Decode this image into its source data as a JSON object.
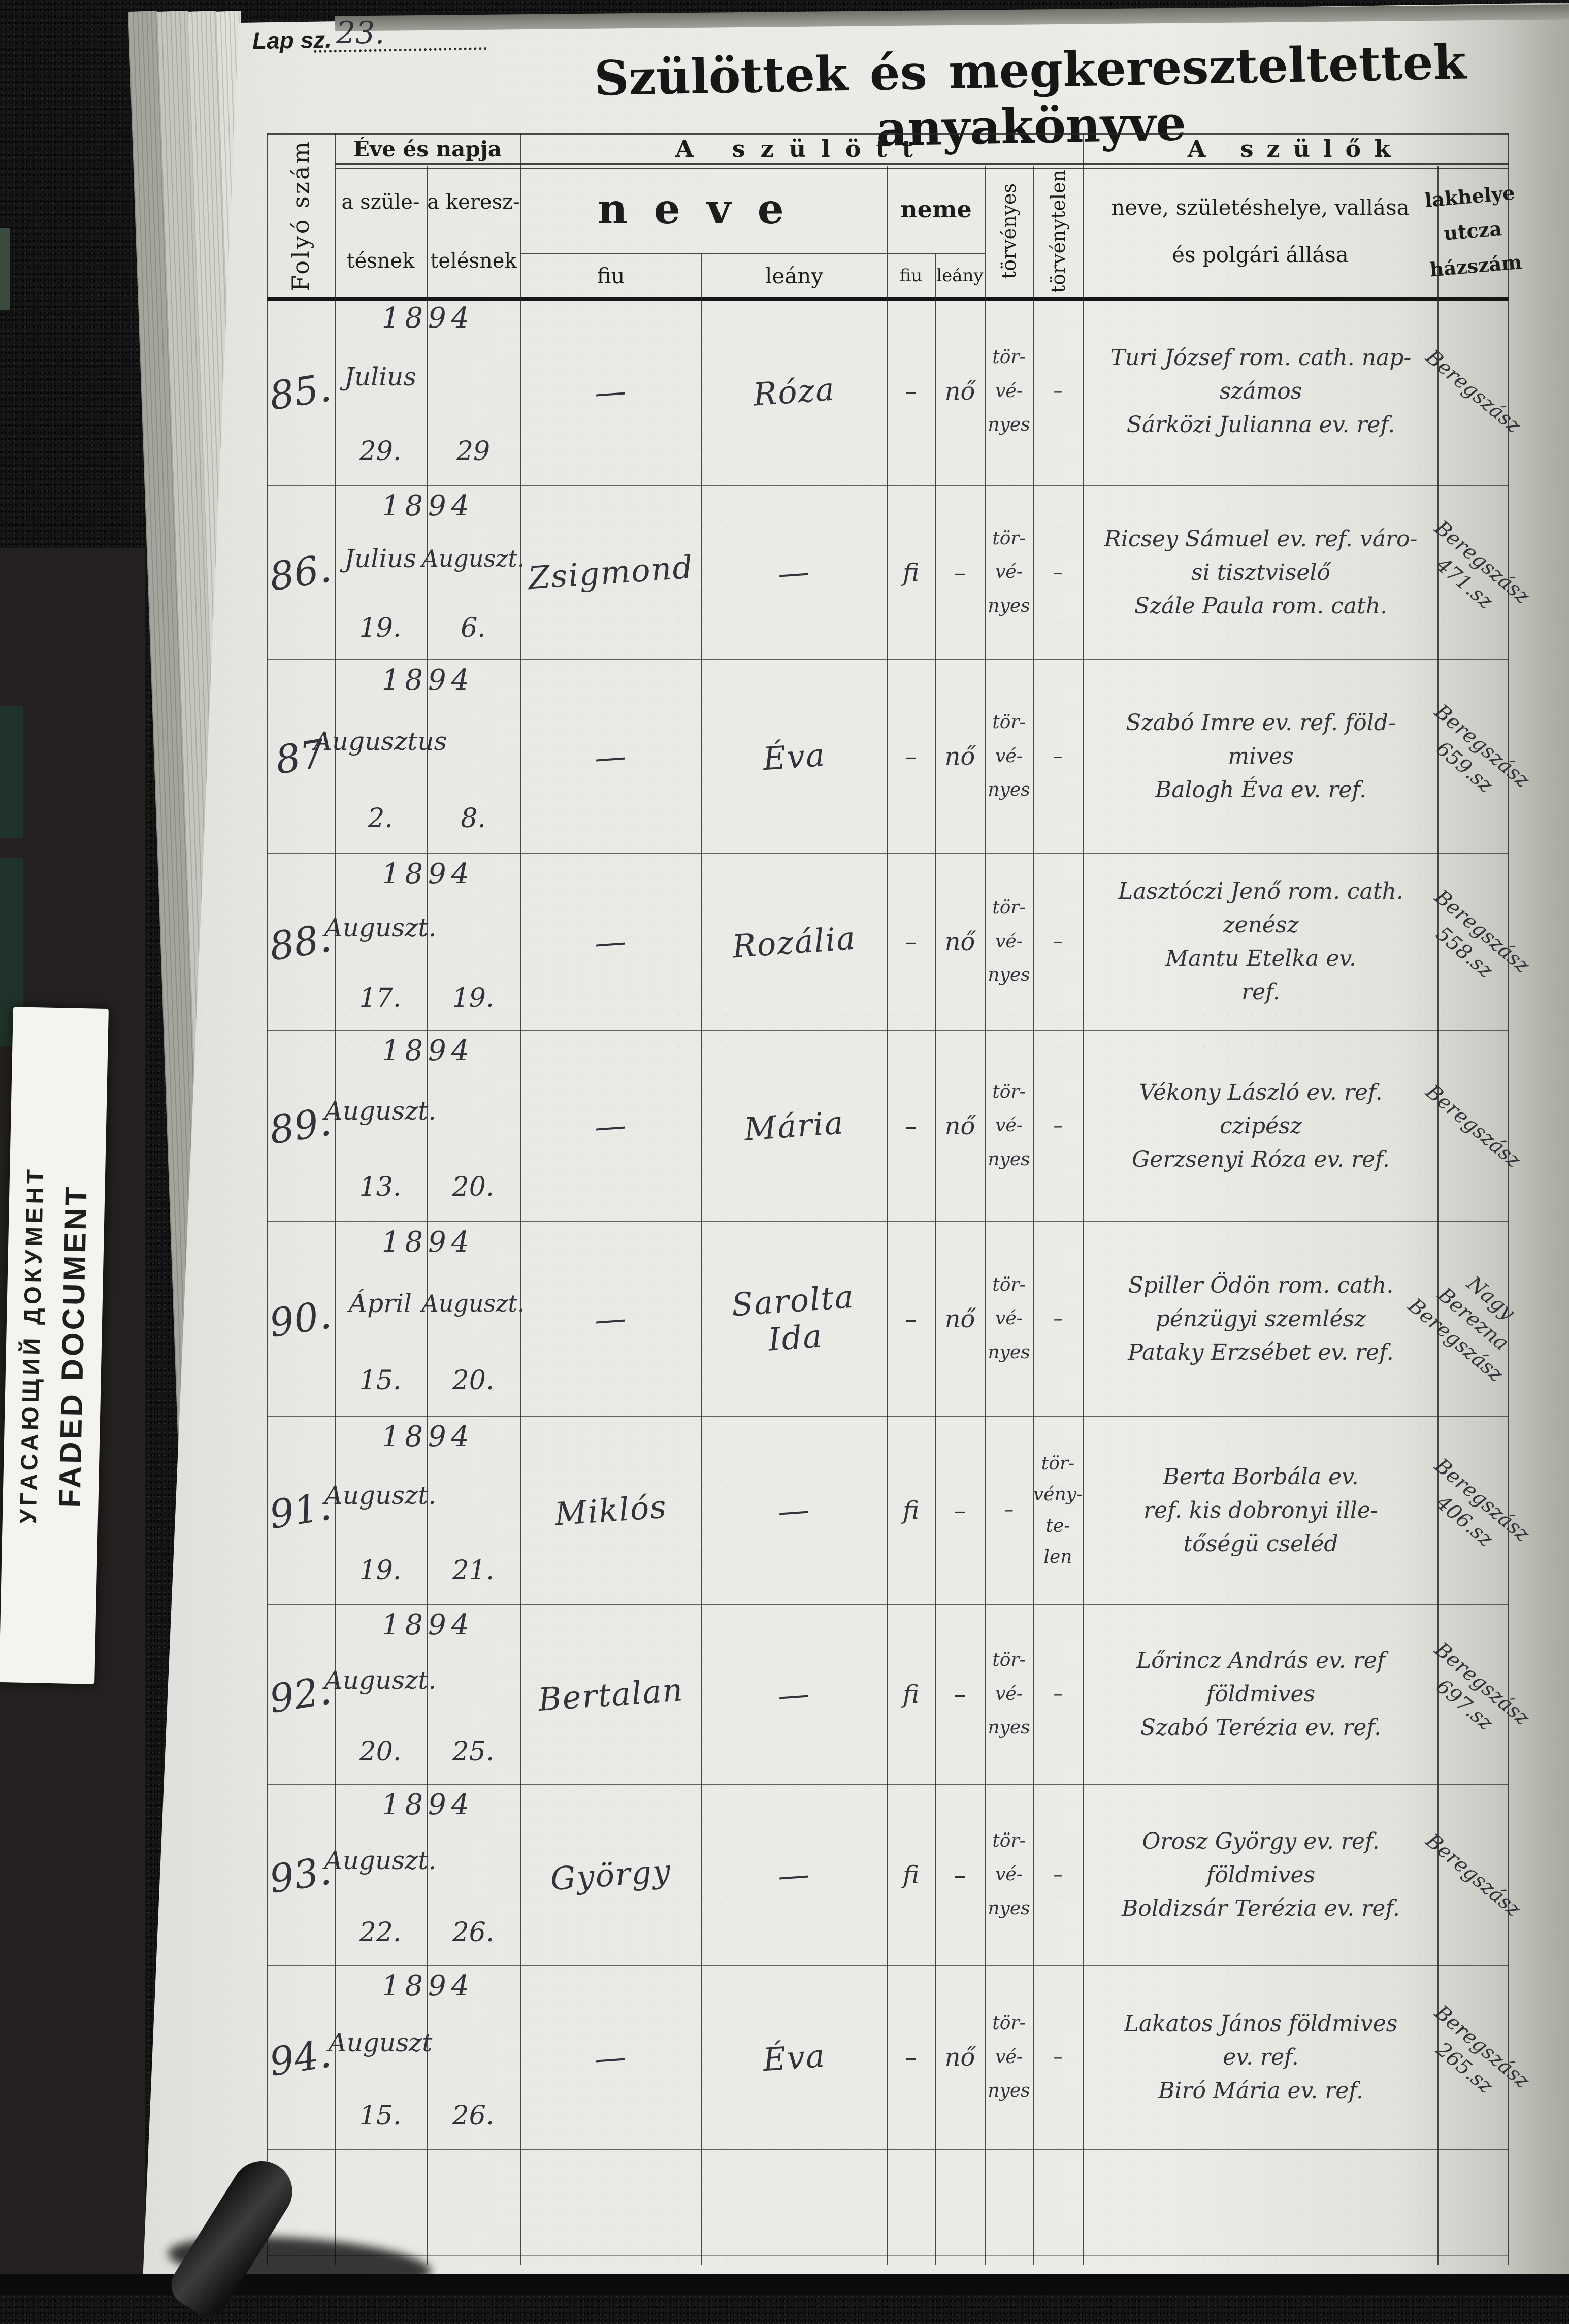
{
  "page": {
    "lap_label": "Lap sz.",
    "lap_number": "23.",
    "title": "Szülöttek és megkereszteltettek anyakönyve"
  },
  "stamp": {
    "russian": "УГАСАЮЩИЙ ДОКУМЕНТ",
    "english": "FADED DOCUMENT"
  },
  "table": {
    "headers": {
      "folyo_szam": "Folyó szám",
      "eve_es_napja": "Éve és napja",
      "szuletesnek": "a szüle-\ntésnek",
      "keresztelesnek": "a keresz-\ntelésnek",
      "a_szulott": "A szülött",
      "neve": "neve",
      "neme": "neme",
      "fiu": "fiu",
      "leany": "leány",
      "torvenyes": "törvényes",
      "torvenytelen": "törvénytelen",
      "a_szulok": "A szülők",
      "szulok_adatai": "neve, születéshelye, vallása\nés polgári állása",
      "lakhelye": "lakhelye\nutcza\nházszám"
    },
    "rows": [
      {
        "num": "85.",
        "year": "1894",
        "birth_month": "Julius",
        "birth_day": "29.",
        "bapt_month": "",
        "bapt_day": "29",
        "boy_name": "—",
        "girl_name": "Róza",
        "sex_boy": "–",
        "sex_girl": "nő",
        "legitimate": "tör-\nvé-\nnyes",
        "illegitimate": "–",
        "parents": "Turi József rom. cath. nap-\nszámos\nSárközi Julianna ev. ref.",
        "residence": "Beregszász"
      },
      {
        "num": "86.",
        "year": "1894",
        "birth_month": "Julius",
        "birth_day": "19.",
        "bapt_month": "Auguszt.",
        "bapt_day": "6.",
        "boy_name": "Zsigmond",
        "girl_name": "—",
        "sex_boy": "fi",
        "sex_girl": "–",
        "legitimate": "tör-\nvé-\nnyes",
        "illegitimate": "–",
        "parents": "Ricsey Sámuel ev. ref. váro-\nsi tisztviselő\nSzále Paula rom. cath.",
        "residence": "Beregszász\n471.sz"
      },
      {
        "num": "87",
        "year": "1894",
        "birth_month": "Augusztus",
        "birth_day": "2.",
        "bapt_month": "",
        "bapt_day": "8.",
        "boy_name": "—",
        "girl_name": "Éva",
        "sex_boy": "–",
        "sex_girl": "nő",
        "legitimate": "tör-\nvé-\nnyes",
        "illegitimate": "–",
        "parents": "Szabó Imre ev. ref. föld-\nmives\nBalogh Éva ev. ref.",
        "residence": "Beregszász\n659.sz"
      },
      {
        "num": "88.",
        "year": "1894",
        "birth_month": "Auguszt.",
        "birth_day": "17.",
        "bapt_month": "",
        "bapt_day": "19.",
        "boy_name": "—",
        "girl_name": "Rozália",
        "sex_boy": "–",
        "sex_girl": "nő",
        "legitimate": "tör-\nvé-\nnyes",
        "illegitimate": "–",
        "parents": "Lasztóczi Jenő rom. cath.\nzenész\nMantu Etelka ev.\nref.",
        "residence": "Beregszász\n558.sz"
      },
      {
        "num": "89.",
        "year": "1894",
        "birth_month": "Auguszt.",
        "birth_day": "13.",
        "bapt_month": "",
        "bapt_day": "20.",
        "boy_name": "—",
        "girl_name": "Mária",
        "sex_boy": "–",
        "sex_girl": "nő",
        "legitimate": "tör-\nvé-\nnyes",
        "illegitimate": "–",
        "parents": "Vékony László ev. ref.\nczipész\nGerzsenyi Róza ev. ref.",
        "residence": "Beregszász"
      },
      {
        "num": "90.",
        "year": "1894",
        "birth_month": "Ápril",
        "birth_day": "15.",
        "bapt_month": "Auguszt.",
        "bapt_day": "20.",
        "boy_name": "—",
        "girl_name": "Sarolta\nIda",
        "sex_boy": "–",
        "sex_girl": "nő",
        "legitimate": "tör-\nvé-\nnyes",
        "illegitimate": "–",
        "parents": "Spiller Ödön rom. cath.\npénzügyi szemlész\nPataky Erzsébet ev. ref.",
        "residence": "Nagy\nBerezna\nBeregszász"
      },
      {
        "num": "91.",
        "year": "1894",
        "birth_month": "Auguszt.",
        "birth_day": "19.",
        "bapt_month": "",
        "bapt_day": "21.",
        "boy_name": "Miklós",
        "girl_name": "—",
        "sex_boy": "fi",
        "sex_girl": "–",
        "legitimate": "–",
        "illegitimate": "tör-\nvény-\nte-\nlen",
        "parents": "Berta Borbála ev.\nref. kis dobronyi ille-\ntőségü cseléd",
        "residence": "Beregszász\n406.sz"
      },
      {
        "num": "92.",
        "year": "1894",
        "birth_month": "Auguszt.",
        "birth_day": "20.",
        "bapt_month": "",
        "bapt_day": "25.",
        "boy_name": "Bertalan",
        "girl_name": "—",
        "sex_boy": "fi",
        "sex_girl": "–",
        "legitimate": "tör-\nvé-\nnyes",
        "illegitimate": "–",
        "parents": "Lőrincz András ev. ref\nföldmives\nSzabó Terézia ev. ref.",
        "residence": "Beregszász\n697.sz"
      },
      {
        "num": "93.",
        "year": "1894",
        "birth_month": "Auguszt.",
        "birth_day": "22.",
        "bapt_month": "",
        "bapt_day": "26.",
        "boy_name": "György",
        "girl_name": "—",
        "sex_boy": "fi",
        "sex_girl": "–",
        "legitimate": "tör-\nvé-\nnyes",
        "illegitimate": "–",
        "parents": "Orosz György ev. ref.\nföldmives\nBoldizsár Terézia ev. ref.",
        "residence": "Beregszász"
      },
      {
        "num": "94.",
        "year": "1894",
        "birth_month": "Auguszt",
        "birth_day": "15.",
        "bapt_month": "",
        "bapt_day": "26.",
        "boy_name": "—",
        "girl_name": "Éva",
        "sex_boy": "–",
        "sex_girl": "nő",
        "legitimate": "tör-\nvé-\nnyes",
        "illegitimate": "–",
        "parents": "Lakatos János földmives\nev. ref.\nBiró Mária ev. ref.",
        "residence": "Beregszász\n265.sz"
      }
    ]
  }
}
